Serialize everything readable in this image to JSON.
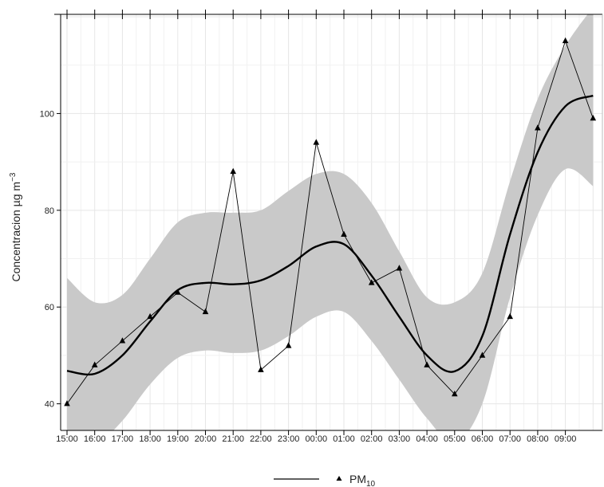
{
  "chart_data": {
    "type": "line",
    "title": "",
    "xlabel": "",
    "ylabel": "Concentracion µg m",
    "ylabel_superscript": "−3",
    "categories": [
      "15:00",
      "16:00",
      "17:00",
      "18:00",
      "19:00",
      "20:00",
      "21:00",
      "22:00",
      "23:00",
      "00:00",
      "01:00",
      "02:00",
      "03:00",
      "04:00",
      "05:00",
      "06:00",
      "07:00",
      "08:00",
      "09:00",
      ""
    ],
    "ylim": [
      34.5,
      120.5
    ],
    "yticks": [
      40,
      60,
      80,
      100
    ],
    "grid": true,
    "legend_position": "bottom",
    "legend": {
      "label": "PM",
      "subscript": "10"
    },
    "series": [
      {
        "kind": "observed",
        "marker": "triangle",
        "values": [
          40,
          48,
          53,
          58,
          63,
          59,
          88,
          47,
          52,
          94,
          75,
          65,
          68,
          48,
          42,
          50,
          58,
          97,
          115,
          99
        ]
      },
      {
        "kind": "smooth",
        "values": [
          46.8,
          46.2,
          50,
          57,
          63.5,
          65,
          64.7,
          65.5,
          68.5,
          72.5,
          73,
          66.5,
          58,
          50,
          46.7,
          54,
          75,
          92,
          101.5,
          103.7
        ],
        "band_upper": [
          66,
          61,
          62.5,
          70,
          77.5,
          79.5,
          79.5,
          80,
          84,
          87.5,
          87.5,
          81.5,
          71.5,
          62,
          61,
          67,
          86,
          103,
          114,
          122
        ],
        "band_lower": [
          28,
          31,
          36.5,
          44,
          49.5,
          51,
          50.5,
          51,
          54,
          58,
          59,
          53,
          45,
          37,
          32,
          40,
          62,
          79,
          88.5,
          85
        ]
      }
    ],
    "colors": {
      "line": "#000000",
      "band": "#c9c9c9",
      "grid": "#e6e6e6",
      "axis": "#000000"
    }
  }
}
